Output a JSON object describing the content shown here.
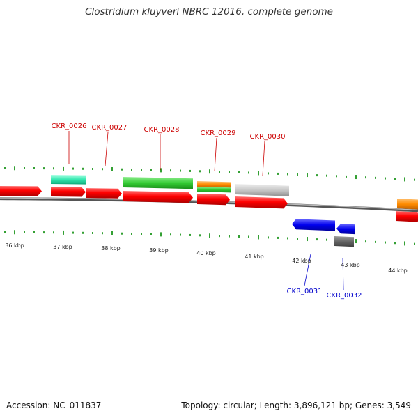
{
  "title": "Clostridium kluyveri NBRC 12016, complete genome",
  "footer": {
    "accession": "Accession: NC_011837",
    "summary": "Topology: circular; Length: 3,896,121 bp; Genes: 3,549"
  },
  "colors": {
    "red": "#ff0000",
    "teal": "#33e8b0",
    "green": "#33cc33",
    "orange": "#ff8c00",
    "gray": "#c8c8c8",
    "blue": "#0000ee",
    "dark_gray": "#666666",
    "tick_green": "#008800",
    "label_red": "#cc0000",
    "label_blue": "#0000cc"
  },
  "kbp_labels": [
    "36 kbp",
    "37 kbp",
    "38 kbp",
    "39 kbp",
    "40 kbp",
    "41 kbp",
    "42 kbp",
    "43 kbp",
    "44 kbp"
  ],
  "gene_labels": [
    {
      "text": "CKR_0026",
      "color": "label_red"
    },
    {
      "text": "CKR_0027",
      "color": "label_red"
    },
    {
      "text": "CKR_0028",
      "color": "label_red"
    },
    {
      "text": "CKR_0029",
      "color": "label_red"
    },
    {
      "text": "CKR_0030",
      "color": "label_red"
    },
    {
      "text": "CKR_0031",
      "color": "label_blue"
    },
    {
      "text": "CKR_0032",
      "color": "label_blue"
    }
  ]
}
